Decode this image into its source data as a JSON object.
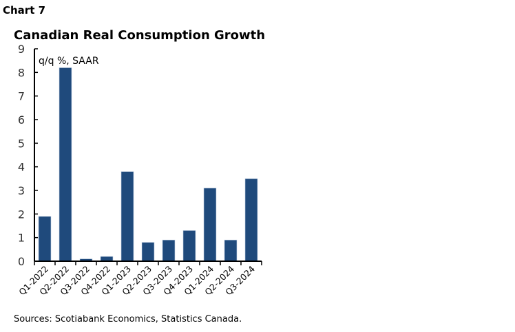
{
  "chart_label": "Chart 7",
  "source": "Sources: Scotiabank Economics, Statistics Canada.",
  "chart_data": {
    "type": "bar",
    "title": "Canadian Real Consumption Growth",
    "ylabel": "q/q %, SAAR",
    "xlabel": "",
    "ylim": [
      0,
      9
    ],
    "yticks": [
      0,
      1,
      2,
      3,
      4,
      5,
      6,
      7,
      8,
      9
    ],
    "categories": [
      "Q1-2022",
      "Q2-2022",
      "Q3-2022",
      "Q4-2022",
      "Q1-2023",
      "Q2-2023",
      "Q3-2023",
      "Q4-2023",
      "Q1-2024",
      "Q2-2024",
      "Q3-2024"
    ],
    "values": [
      1.9,
      8.2,
      0.1,
      0.2,
      3.8,
      0.8,
      0.9,
      1.3,
      3.1,
      0.9,
      3.5
    ],
    "color": "#1f4a7c",
    "grid": false
  }
}
